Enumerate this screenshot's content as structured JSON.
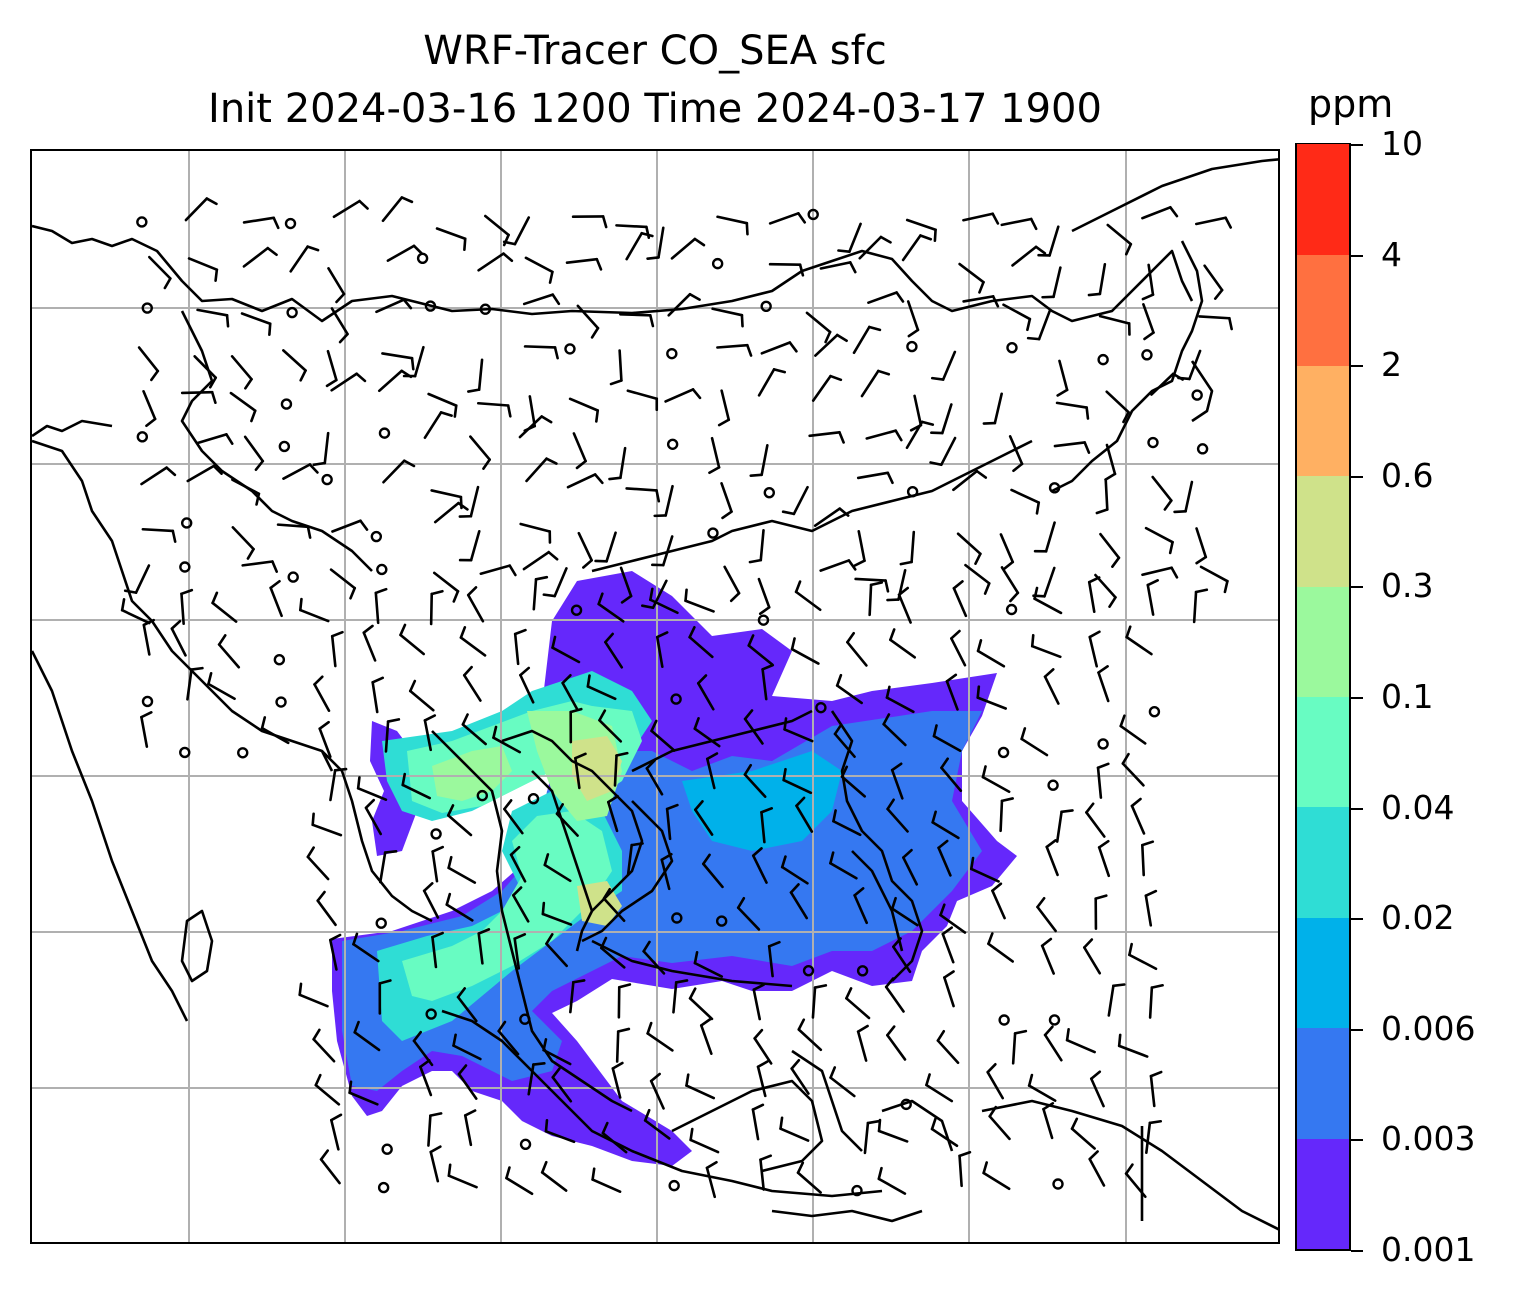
{
  "title_line1": "WRF-Tracer CO_SEA sfc",
  "title_line2": "Init 2024-03-16 1200 Time 2024-03-17 1900",
  "colorbar": {
    "unit": "ppm",
    "ticks": [
      "0.001",
      "0.003",
      "0.006",
      "0.02",
      "0.04",
      "0.1",
      "0.3",
      "0.6",
      "2",
      "4",
      "10"
    ],
    "colors": [
      "#6528fb",
      "#3578f1",
      "#00b1ea",
      "#2fddd5",
      "#68fcc2",
      "#9bf99d",
      "#cfe28a",
      "#ffb062",
      "#ff7040",
      "#ff2a17"
    ]
  },
  "map": {
    "gridline_color": "#b0b0b0",
    "coastline_color": "#000000",
    "wind_marker_color": "#000000"
  }
}
